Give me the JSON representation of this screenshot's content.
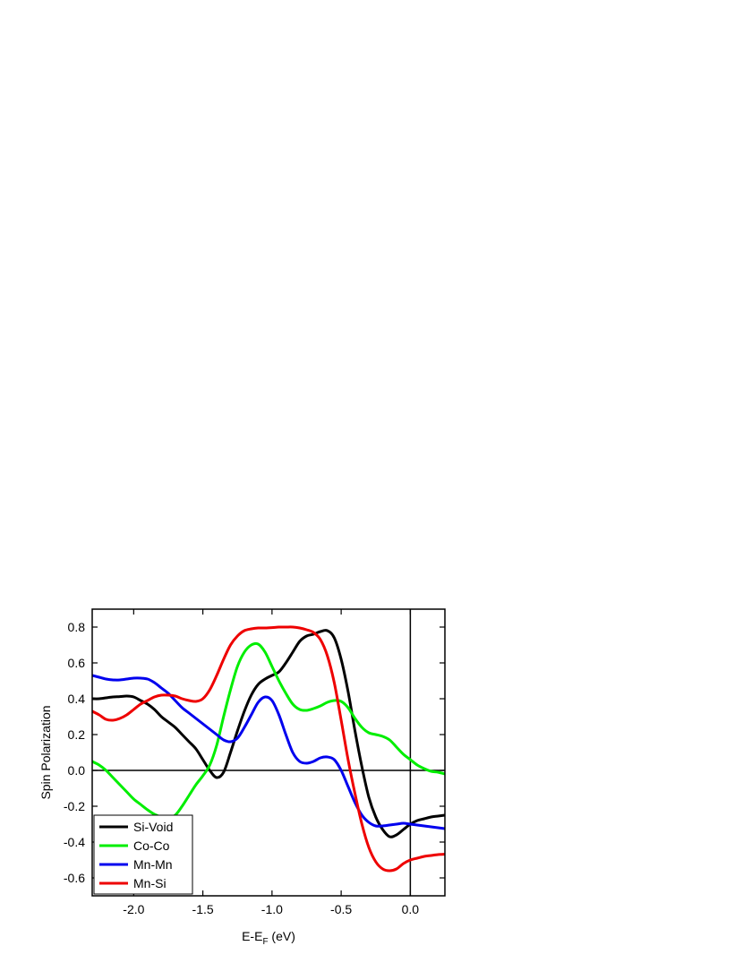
{
  "chart_data": {
    "type": "line",
    "x_label_parts": [
      "E-E",
      "F",
      " (eV)"
    ],
    "y_label": "Spin Polarization",
    "x": [
      -2.3,
      -2.25,
      -2.2,
      -2.15,
      -2.1,
      -2.05,
      -2.0,
      -1.95,
      -1.9,
      -1.85,
      -1.8,
      -1.75,
      -1.7,
      -1.65,
      -1.6,
      -1.55,
      -1.5,
      -1.45,
      -1.4,
      -1.35,
      -1.3,
      -1.25,
      -1.2,
      -1.15,
      -1.1,
      -1.05,
      -1.0,
      -0.95,
      -0.9,
      -0.85,
      -0.8,
      -0.75,
      -0.7,
      -0.65,
      -0.6,
      -0.55,
      -0.5,
      -0.45,
      -0.4,
      -0.35,
      -0.3,
      -0.25,
      -0.2,
      -0.15,
      -0.1,
      -0.05,
      0.0,
      0.05,
      0.1,
      0.15,
      0.2,
      0.25
    ],
    "series": [
      {
        "name": "Si-Void",
        "color": "#000000",
        "values": [
          0.4,
          0.4,
          0.405,
          0.41,
          0.412,
          0.415,
          0.41,
          0.39,
          0.37,
          0.34,
          0.3,
          0.27,
          0.24,
          0.2,
          0.16,
          0.12,
          0.06,
          0.0,
          -0.04,
          -0.01,
          0.1,
          0.22,
          0.33,
          0.42,
          0.48,
          0.51,
          0.53,
          0.55,
          0.6,
          0.66,
          0.72,
          0.75,
          0.76,
          0.775,
          0.78,
          0.74,
          0.62,
          0.44,
          0.22,
          0.02,
          -0.15,
          -0.26,
          -0.33,
          -0.37,
          -0.36,
          -0.33,
          -0.3,
          -0.28,
          -0.27,
          -0.26,
          -0.255,
          -0.25
        ]
      },
      {
        "name": "Co-Co",
        "color": "#00ee00",
        "values": [
          0.05,
          0.03,
          0.0,
          -0.04,
          -0.08,
          -0.12,
          -0.16,
          -0.19,
          -0.22,
          -0.245,
          -0.26,
          -0.265,
          -0.25,
          -0.2,
          -0.14,
          -0.08,
          -0.03,
          0.03,
          0.14,
          0.3,
          0.45,
          0.58,
          0.66,
          0.7,
          0.705,
          0.66,
          0.58,
          0.5,
          0.43,
          0.37,
          0.34,
          0.335,
          0.345,
          0.36,
          0.38,
          0.39,
          0.385,
          0.35,
          0.29,
          0.24,
          0.21,
          0.2,
          0.19,
          0.17,
          0.13,
          0.09,
          0.06,
          0.03,
          0.01,
          -0.005,
          -0.01,
          -0.02
        ]
      },
      {
        "name": "Mn-Mn",
        "color": "#0000ee",
        "values": [
          0.53,
          0.52,
          0.51,
          0.505,
          0.505,
          0.51,
          0.515,
          0.515,
          0.51,
          0.49,
          0.46,
          0.43,
          0.39,
          0.35,
          0.32,
          0.29,
          0.26,
          0.23,
          0.2,
          0.17,
          0.16,
          0.18,
          0.24,
          0.31,
          0.38,
          0.41,
          0.39,
          0.31,
          0.2,
          0.1,
          0.05,
          0.04,
          0.05,
          0.07,
          0.075,
          0.06,
          0.0,
          -0.09,
          -0.18,
          -0.25,
          -0.29,
          -0.31,
          -0.31,
          -0.305,
          -0.3,
          -0.295,
          -0.3,
          -0.305,
          -0.31,
          -0.315,
          -0.32,
          -0.325
        ]
      },
      {
        "name": "Mn-Si",
        "color": "#ee0000",
        "values": [
          0.33,
          0.31,
          0.285,
          0.28,
          0.29,
          0.31,
          0.34,
          0.37,
          0.39,
          0.41,
          0.42,
          0.42,
          0.415,
          0.4,
          0.39,
          0.385,
          0.4,
          0.45,
          0.53,
          0.62,
          0.7,
          0.75,
          0.78,
          0.79,
          0.795,
          0.795,
          0.797,
          0.8,
          0.8,
          0.8,
          0.795,
          0.785,
          0.77,
          0.73,
          0.64,
          0.49,
          0.28,
          0.06,
          -0.13,
          -0.3,
          -0.43,
          -0.51,
          -0.55,
          -0.56,
          -0.55,
          -0.52,
          -0.5,
          -0.49,
          -0.48,
          -0.475,
          -0.47,
          -0.468
        ]
      }
    ],
    "xlim": [
      -2.3,
      0.25
    ],
    "ylim": [
      -0.7,
      0.9
    ],
    "xticks": [
      {
        "value": -2.0,
        "label": "-2.0"
      },
      -1.5,
      {
        "value": -1.0,
        "label": "-1.0"
      },
      -0.5,
      {
        "value": 0.0,
        "label": "0.0"
      }
    ],
    "yticks": [
      -0.6,
      -0.4,
      -0.2,
      {
        "value": 0.0,
        "label": "0.0"
      },
      0.2,
      0.4,
      0.6,
      0.8
    ],
    "reference_lines": {
      "x": 0,
      "y": 0
    },
    "legend": "lower left"
  }
}
